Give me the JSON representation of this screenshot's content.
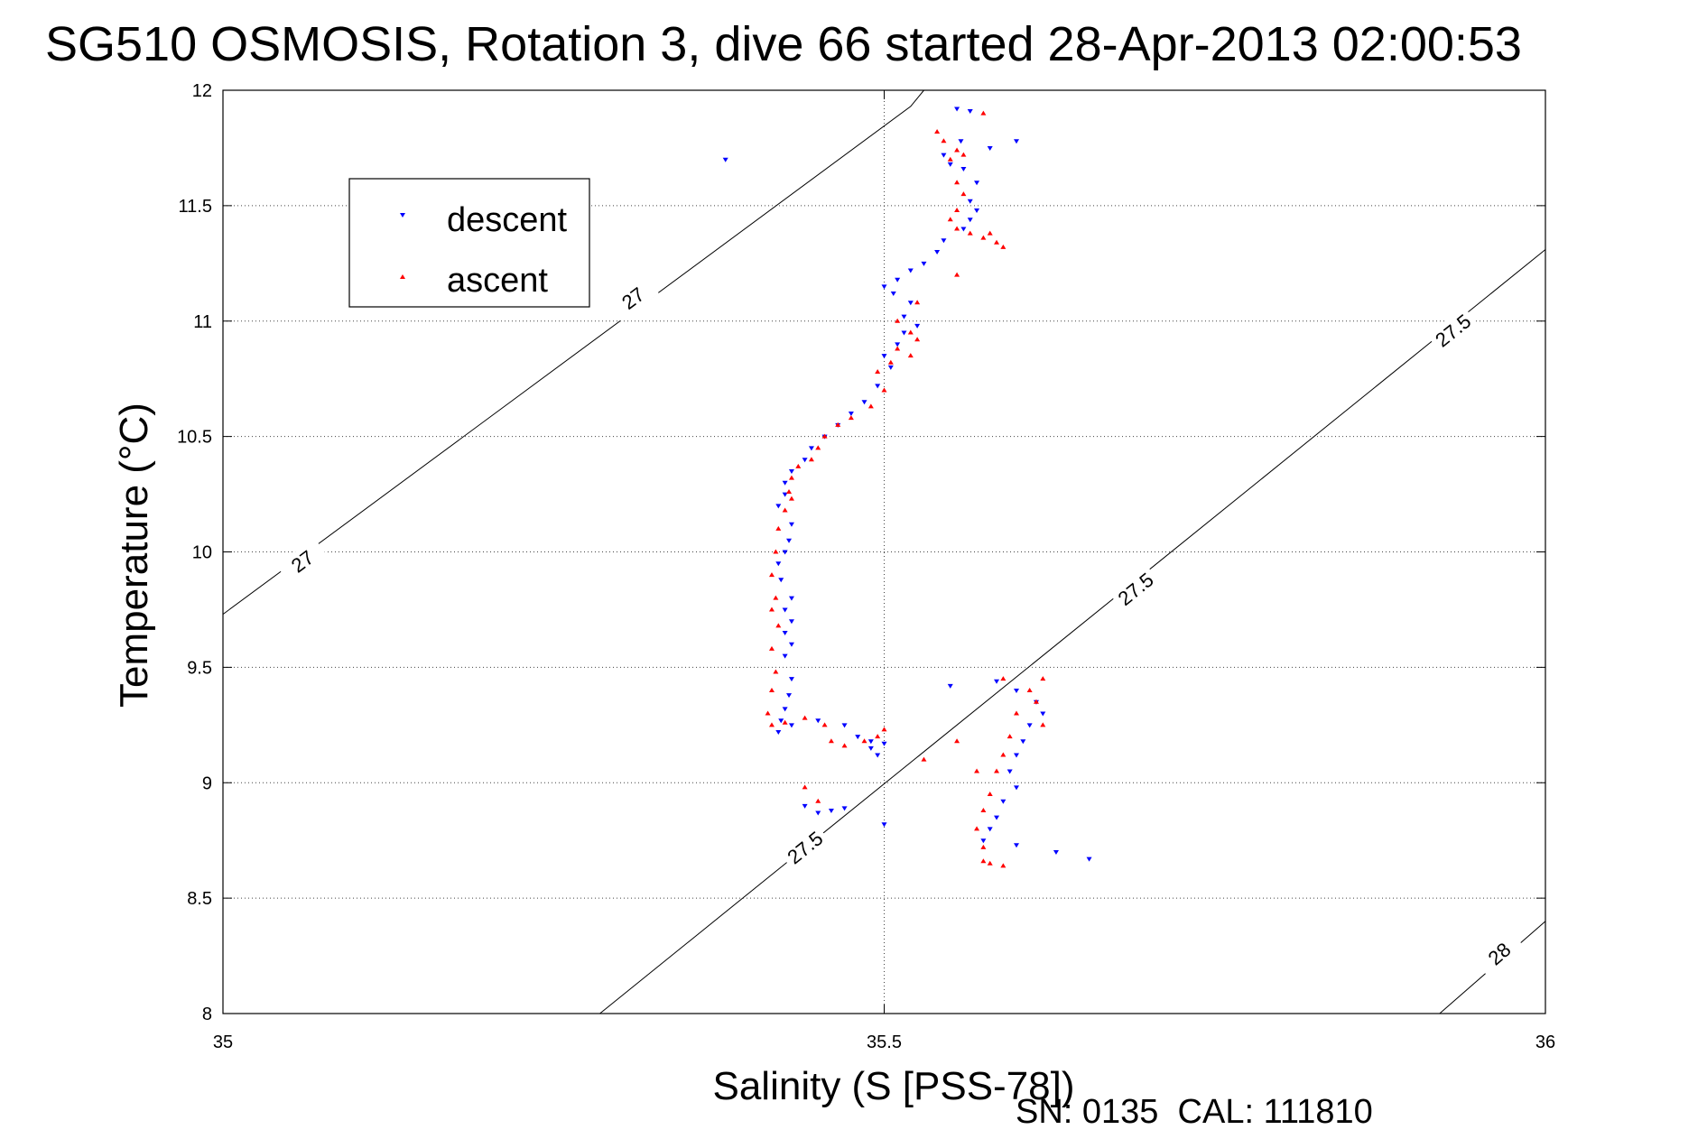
{
  "chart_data": {
    "type": "scatter",
    "title": "SG510 OSMOSIS, Rotation 3, dive 66 started 28-Apr-2013 02:00:53",
    "xlabel": "Salinity (S [PSS-78])",
    "ylabel": "Temperature (°C)",
    "xlim": [
      35,
      36
    ],
    "ylim": [
      8,
      12
    ],
    "xticks": [
      35,
      35.5,
      36
    ],
    "xtick_labels": [
      "35",
      "35.5",
      "36"
    ],
    "yticks": [
      8,
      8.5,
      9,
      9.5,
      10,
      10.5,
      11,
      11.5,
      12
    ],
    "ytick_labels": [
      "8",
      "8.5",
      "9",
      "9.5",
      "10",
      "10.5",
      "11",
      "11.5",
      "12"
    ],
    "grid": true,
    "legend_position": "top-left",
    "footer": "SN: 0135  CAL: 111810",
    "density_contours": [
      {
        "label": "27",
        "points": [
          [
            35,
            9.73
          ],
          [
            35.52,
            11.93
          ],
          [
            35.53,
            12
          ]
        ],
        "labels_at": [
          [
            35.06,
            9.96
          ],
          [
            35.31,
            11.1
          ]
        ]
      },
      {
        "label": "27.5",
        "points": [
          [
            35.285,
            8
          ],
          [
            36,
            11.31
          ]
        ],
        "labels_at": [
          [
            35.44,
            8.72
          ],
          [
            35.69,
            9.84
          ],
          [
            35.93,
            10.96
          ]
        ]
      },
      {
        "label": "28",
        "points": [
          [
            35.92,
            8
          ],
          [
            36,
            8.4
          ]
        ],
        "labels_at": [
          [
            35.965,
            8.26
          ]
        ]
      }
    ],
    "series": [
      {
        "name": "descent",
        "color": "#0000ff",
        "marker": "triangle-down",
        "points": [
          [
            35.555,
            11.92
          ],
          [
            35.565,
            11.91
          ],
          [
            35.558,
            11.78
          ],
          [
            35.545,
            11.72
          ],
          [
            35.55,
            11.68
          ],
          [
            35.56,
            11.66
          ],
          [
            35.57,
            11.6
          ],
          [
            35.565,
            11.52
          ],
          [
            35.57,
            11.48
          ],
          [
            35.565,
            11.44
          ],
          [
            35.56,
            11.4
          ],
          [
            35.545,
            11.35
          ],
          [
            35.54,
            11.3
          ],
          [
            35.53,
            11.25
          ],
          [
            35.52,
            11.22
          ],
          [
            35.51,
            11.18
          ],
          [
            35.5,
            11.15
          ],
          [
            35.507,
            11.12
          ],
          [
            35.52,
            11.08
          ],
          [
            35.515,
            11.02
          ],
          [
            35.525,
            10.98
          ],
          [
            35.515,
            10.95
          ],
          [
            35.51,
            10.9
          ],
          [
            35.5,
            10.85
          ],
          [
            35.505,
            10.8
          ],
          [
            35.495,
            10.72
          ],
          [
            35.485,
            10.65
          ],
          [
            35.475,
            10.6
          ],
          [
            35.465,
            10.55
          ],
          [
            35.455,
            10.5
          ],
          [
            35.445,
            10.45
          ],
          [
            35.44,
            10.4
          ],
          [
            35.43,
            10.35
          ],
          [
            35.425,
            10.3
          ],
          [
            35.425,
            10.25
          ],
          [
            35.42,
            10.2
          ],
          [
            35.43,
            10.12
          ],
          [
            35.428,
            10.05
          ],
          [
            35.425,
            10.0
          ],
          [
            35.42,
            9.95
          ],
          [
            35.422,
            9.88
          ],
          [
            35.43,
            9.8
          ],
          [
            35.425,
            9.75
          ],
          [
            35.43,
            9.7
          ],
          [
            35.425,
            9.65
          ],
          [
            35.43,
            9.6
          ],
          [
            35.425,
            9.55
          ],
          [
            35.43,
            9.45
          ],
          [
            35.428,
            9.38
          ],
          [
            35.425,
            9.32
          ],
          [
            35.422,
            9.27
          ],
          [
            35.42,
            9.22
          ],
          [
            35.43,
            9.25
          ],
          [
            35.45,
            9.27
          ],
          [
            35.47,
            9.25
          ],
          [
            35.48,
            9.2
          ],
          [
            35.49,
            9.18
          ],
          [
            35.5,
            9.17
          ],
          [
            35.495,
            9.12
          ],
          [
            35.49,
            9.15
          ],
          [
            35.44,
            8.9
          ],
          [
            35.45,
            8.87
          ],
          [
            35.46,
            8.88
          ],
          [
            35.47,
            8.89
          ],
          [
            35.5,
            8.82
          ],
          [
            35.55,
            9.42
          ],
          [
            35.585,
            9.44
          ],
          [
            35.6,
            9.4
          ],
          [
            35.615,
            9.35
          ],
          [
            35.62,
            9.3
          ],
          [
            35.61,
            9.25
          ],
          [
            35.605,
            9.18
          ],
          [
            35.6,
            9.12
          ],
          [
            35.595,
            9.05
          ],
          [
            35.6,
            8.98
          ],
          [
            35.59,
            8.92
          ],
          [
            35.585,
            8.85
          ],
          [
            35.58,
            8.8
          ],
          [
            35.575,
            8.75
          ],
          [
            35.6,
            8.73
          ],
          [
            35.63,
            8.7
          ],
          [
            35.655,
            8.67
          ],
          [
            35.38,
            11.7
          ],
          [
            35.6,
            11.78
          ],
          [
            35.58,
            11.75
          ]
        ]
      },
      {
        "name": "ascent",
        "color": "#ff0000",
        "marker": "triangle-up",
        "points": [
          [
            35.575,
            11.9
          ],
          [
            35.54,
            11.82
          ],
          [
            35.545,
            11.78
          ],
          [
            35.555,
            11.74
          ],
          [
            35.55,
            11.7
          ],
          [
            35.56,
            11.72
          ],
          [
            35.555,
            11.6
          ],
          [
            35.56,
            11.55
          ],
          [
            35.555,
            11.48
          ],
          [
            35.55,
            11.44
          ],
          [
            35.555,
            11.4
          ],
          [
            35.565,
            11.38
          ],
          [
            35.575,
            11.36
          ],
          [
            35.585,
            11.34
          ],
          [
            35.58,
            11.38
          ],
          [
            35.59,
            11.32
          ],
          [
            35.555,
            11.2
          ],
          [
            35.525,
            11.08
          ],
          [
            35.51,
            11.0
          ],
          [
            35.52,
            10.95
          ],
          [
            35.525,
            10.92
          ],
          [
            35.51,
            10.88
          ],
          [
            35.52,
            10.85
          ],
          [
            35.505,
            10.82
          ],
          [
            35.495,
            10.78
          ],
          [
            35.5,
            10.7
          ],
          [
            35.49,
            10.63
          ],
          [
            35.475,
            10.58
          ],
          [
            35.465,
            10.55
          ],
          [
            35.455,
            10.5
          ],
          [
            35.45,
            10.45
          ],
          [
            35.445,
            10.4
          ],
          [
            35.435,
            10.37
          ],
          [
            35.43,
            10.32
          ],
          [
            35.428,
            10.26
          ],
          [
            35.43,
            10.23
          ],
          [
            35.425,
            10.18
          ],
          [
            35.42,
            10.1
          ],
          [
            35.418,
            10.0
          ],
          [
            35.415,
            9.9
          ],
          [
            35.418,
            9.8
          ],
          [
            35.415,
            9.75
          ],
          [
            35.42,
            9.68
          ],
          [
            35.415,
            9.58
          ],
          [
            35.418,
            9.48
          ],
          [
            35.415,
            9.4
          ],
          [
            35.412,
            9.3
          ],
          [
            35.415,
            9.25
          ],
          [
            35.425,
            9.26
          ],
          [
            35.44,
            9.28
          ],
          [
            35.455,
            9.25
          ],
          [
            35.46,
            9.18
          ],
          [
            35.47,
            9.16
          ],
          [
            35.485,
            9.18
          ],
          [
            35.495,
            9.2
          ],
          [
            35.5,
            9.23
          ],
          [
            35.44,
            8.98
          ],
          [
            35.45,
            8.92
          ],
          [
            35.555,
            9.18
          ],
          [
            35.57,
            9.05
          ],
          [
            35.59,
            9.45
          ],
          [
            35.61,
            9.4
          ],
          [
            35.6,
            9.3
          ],
          [
            35.595,
            9.2
          ],
          [
            35.59,
            9.12
          ],
          [
            35.585,
            9.05
          ],
          [
            35.58,
            8.95
          ],
          [
            35.575,
            8.88
          ],
          [
            35.57,
            8.8
          ],
          [
            35.575,
            8.72
          ],
          [
            35.575,
            8.66
          ],
          [
            35.58,
            8.65
          ],
          [
            35.59,
            8.64
          ],
          [
            35.62,
            9.45
          ],
          [
            35.615,
            9.35
          ],
          [
            35.62,
            9.25
          ],
          [
            35.53,
            9.1
          ]
        ]
      }
    ]
  }
}
